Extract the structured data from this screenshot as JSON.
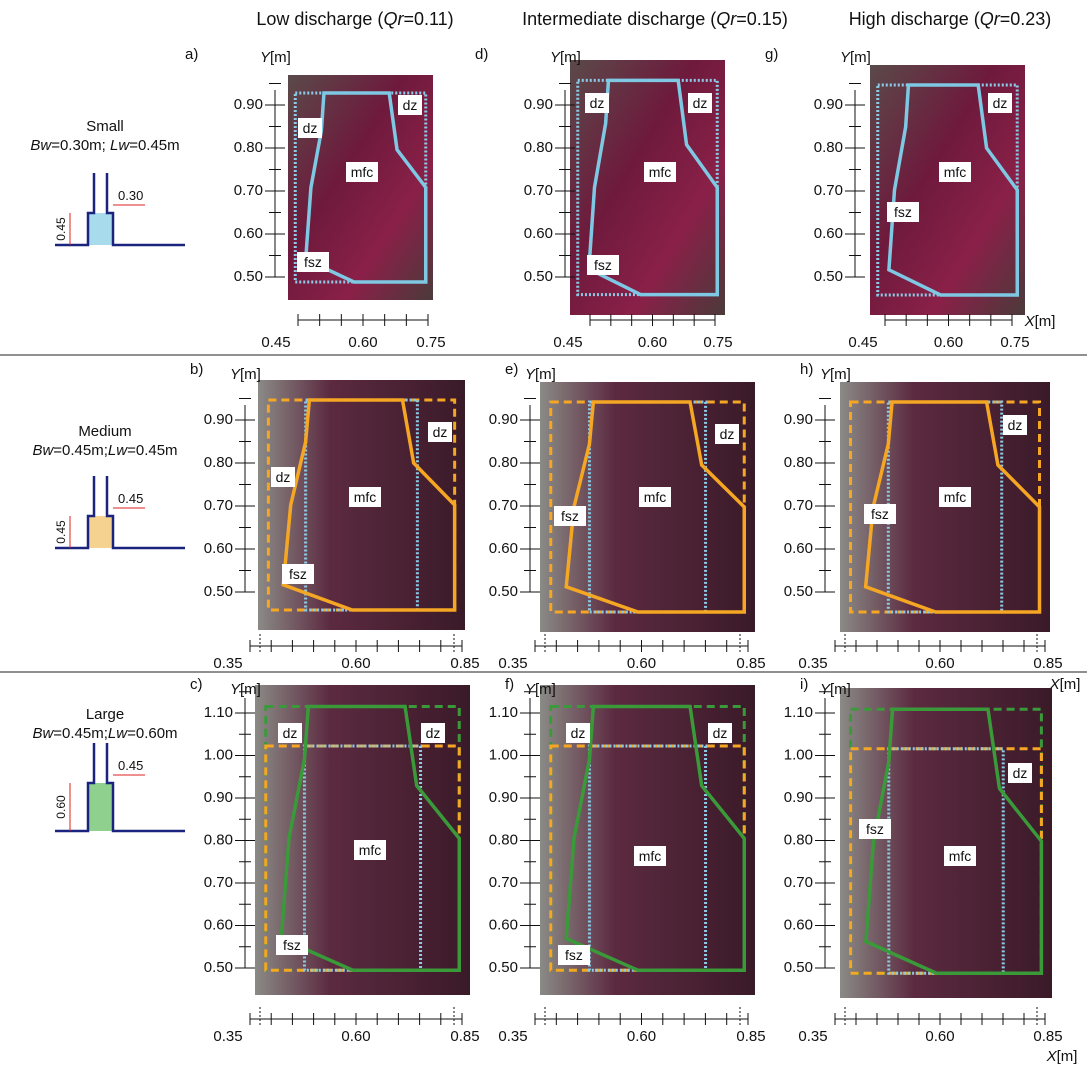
{
  "header": {
    "columns": [
      {
        "pre": "Low discharge (",
        "sym": "Qr",
        "post": "=0.11)"
      },
      {
        "pre": "Intermediate discharge (",
        "sym": "Qr",
        "post": "=0.15)"
      },
      {
        "pre": "High discharge (",
        "sym": "Qr",
        "post": "=0.23)"
      }
    ]
  },
  "rows": [
    {
      "name": "Small",
      "bw": "Bw",
      "bwv": "=0.30m; ",
      "lw": "Lw",
      "lwv": "=0.45m",
      "h": "0.45",
      "w": "0.30"
    },
    {
      "name": "Medium",
      "bw": "Bw",
      "bwv": "=0.45m;",
      "lw": "Lw",
      "lwv": "=0.45m",
      "h": "0.45",
      "w": "0.45"
    },
    {
      "name": "Large",
      "bw": "Bw",
      "bwv": "=0.45m;",
      "lw": "Lw",
      "lwv": "=0.60m",
      "h": "0.60",
      "w": "0.45"
    }
  ],
  "panels": [
    {
      "letter": "a)",
      "y_var": "Y",
      "y_unit": "[m]",
      "yticks": [
        "0.90",
        "0.80",
        "0.70",
        "0.60",
        "0.50"
      ],
      "xticks": [
        "0.45",
        "0.60",
        "0.75"
      ],
      "zones": [
        "dz",
        "dz",
        "mfc",
        "fsz"
      ]
    },
    {
      "letter": "d)",
      "y_var": "Y",
      "y_unit": "[m]",
      "yticks": [
        "0.90",
        "0.80",
        "0.70",
        "0.60",
        "0.50"
      ],
      "xticks": [
        "0.45",
        "0.60",
        "0.75"
      ],
      "zones": [
        "dz",
        "dz",
        "mfc",
        "fsz"
      ]
    },
    {
      "letter": "g)",
      "y_var": "Y",
      "y_unit": "[m]",
      "yticks": [
        "0.90",
        "0.80",
        "0.70",
        "0.60",
        "0.50"
      ],
      "xticks": [
        "0.45",
        "0.60",
        "0.75"
      ],
      "zones": [
        "dz",
        "mfc",
        "fsz"
      ],
      "x_var": "X",
      "x_unit": "[m]"
    },
    {
      "letter": "b)",
      "y_var": "Y",
      "y_unit": "[m]",
      "yticks": [
        "0.90",
        "0.80",
        "0.70",
        "0.60",
        "0.50"
      ],
      "xticks": [
        "0.35",
        "0.60",
        "0.85"
      ],
      "zones": [
        "dz",
        "dz",
        "mfc",
        "fsz"
      ]
    },
    {
      "letter": "e)",
      "y_var": "Y",
      "y_unit": "[m]",
      "yticks": [
        "0.90",
        "0.80",
        "0.70",
        "0.60",
        "0.50"
      ],
      "xticks": [
        "0.35",
        "0.60",
        "0.85"
      ],
      "zones": [
        "fsz",
        "dz",
        "mfc"
      ]
    },
    {
      "letter": "h)",
      "y_var": "Y",
      "y_unit": "[m]",
      "yticks": [
        "0.90",
        "0.80",
        "0.70",
        "0.60",
        "0.50"
      ],
      "xticks": [
        "0.35",
        "0.60",
        "0.85"
      ],
      "zones": [
        "fsz",
        "dz",
        "mfc"
      ],
      "x_var": "X",
      "x_unit": "[m]"
    },
    {
      "letter": "c)",
      "y_var": "Y",
      "y_unit": "[m]",
      "yticks": [
        "1.10",
        "1.00",
        "0.90",
        "0.80",
        "0.70",
        "0.60",
        "0.50"
      ],
      "xticks": [
        "0.35",
        "0.60",
        "0.85"
      ],
      "zones": [
        "dz",
        "dz",
        "mfc",
        "fsz"
      ]
    },
    {
      "letter": "f)",
      "y_var": "Y",
      "y_unit": "[m]",
      "yticks": [
        "1.10",
        "1.00",
        "0.90",
        "0.80",
        "0.70",
        "0.60",
        "0.50"
      ],
      "xticks": [
        "0.35",
        "0.60",
        "0.85"
      ],
      "zones": [
        "dz",
        "dz",
        "mfc",
        "fsz"
      ]
    },
    {
      "letter": "i)",
      "y_var": "Y",
      "y_unit": "[m]",
      "yticks": [
        "1.10",
        "1.00",
        "0.90",
        "0.80",
        "0.70",
        "0.60",
        "0.50"
      ],
      "xticks": [
        "0.35",
        "0.60",
        "0.85"
      ],
      "zones": [
        "dz",
        "fsz",
        "mfc"
      ],
      "x_var": "X",
      "x_unit": "[m]"
    }
  ]
}
